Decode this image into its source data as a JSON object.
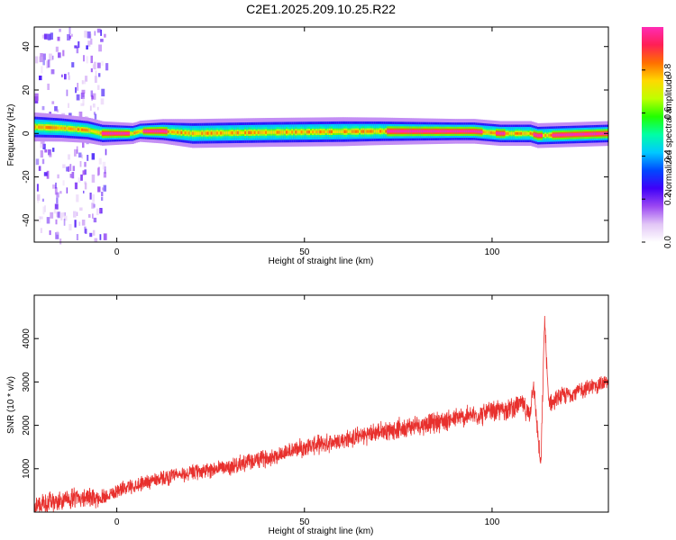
{
  "title": "C2E1.2025.209.10.25.R22",
  "chart_data": [
    {
      "type": "heatmap",
      "xlabel": "Height of straight line (km)",
      "ylabel": "Frequency (Hz)",
      "xlim": [
        -22,
        131
      ],
      "ylim": [
        -50,
        49
      ],
      "xticks": [
        0,
        50,
        100
      ],
      "yticks": [
        -40,
        -20,
        0,
        20,
        40
      ],
      "colorbar": {
        "label": "Normalized spectral amplitude",
        "range": [
          0,
          1
        ],
        "ticks": [
          "0.0",
          "0.2",
          "0.4",
          "0.6",
          "0.8"
        ],
        "tick_values": [
          0,
          0.2,
          0.4,
          0.6,
          0.8
        ],
        "colors": [
          "#ffffff",
          "#e2c6f6",
          "#9b47f2",
          "#3f00f8",
          "#0048ff",
          "#00c9ff",
          "#00ffa5",
          "#21ff00",
          "#bfff00",
          "#ffd900",
          "#ff7000",
          "#ff1f55",
          "#ff2bb5"
        ]
      },
      "band": {
        "center_hz": [
          [
            -22,
            3
          ],
          [
            -15,
            2.5
          ],
          [
            -8,
            1.5
          ],
          [
            -4,
            0
          ],
          [
            4,
            0
          ],
          [
            6,
            1
          ],
          [
            12,
            1
          ],
          [
            20,
            0
          ],
          [
            40,
            0.5
          ],
          [
            70,
            1
          ],
          [
            95,
            1
          ],
          [
            102,
            0
          ],
          [
            110,
            0
          ],
          [
            112,
            -1
          ],
          [
            131,
            0
          ]
        ],
        "half_width_hz": [
          [
            -22,
            3.5
          ],
          [
            -5,
            3
          ],
          [
            5,
            2.5
          ],
          [
            20,
            3.5
          ],
          [
            60,
            3.5
          ],
          [
            90,
            3
          ],
          [
            110,
            3
          ],
          [
            131,
            3
          ]
        ],
        "peak_segments": [
          [
            -4,
            3
          ],
          [
            7,
            13
          ],
          [
            72,
            97
          ],
          [
            101,
            103
          ],
          [
            111,
            113
          ],
          [
            116,
            131
          ]
        ]
      },
      "noise_region_x": [
        -22,
        -3
      ]
    },
    {
      "type": "line",
      "xlabel": "Height of straight line (km)",
      "ylabel": "SNR (10 * v/v)",
      "xlim": [
        -22,
        131
      ],
      "ylim": [
        0,
        5000
      ],
      "xticks": [
        0,
        50,
        100
      ],
      "yticks": [
        1000,
        2000,
        3000,
        4000
      ],
      "color": "#e8302d",
      "series": [
        {
          "x": [
            -22,
            -15,
            -10,
            -5,
            0,
            10,
            20,
            30,
            40,
            50,
            60,
            70,
            80,
            90,
            100,
            105,
            108,
            110,
            111,
            112,
            113,
            114,
            115,
            116,
            118,
            120,
            125,
            131
          ],
          "y": [
            150,
            250,
            350,
            300,
            500,
            750,
            900,
            1050,
            1250,
            1500,
            1650,
            1850,
            2000,
            2150,
            2300,
            2400,
            2500,
            2200,
            3000,
            2000,
            1000,
            4500,
            2600,
            2500,
            2650,
            2700,
            2850,
            3000
          ],
          "noise_amplitude": [
            [
              -22,
              300
            ],
            [
              -5,
              250
            ],
            [
              0,
              200
            ],
            [
              50,
              250
            ],
            [
              100,
              300
            ],
            [
              131,
              220
            ]
          ]
        }
      ]
    }
  ]
}
